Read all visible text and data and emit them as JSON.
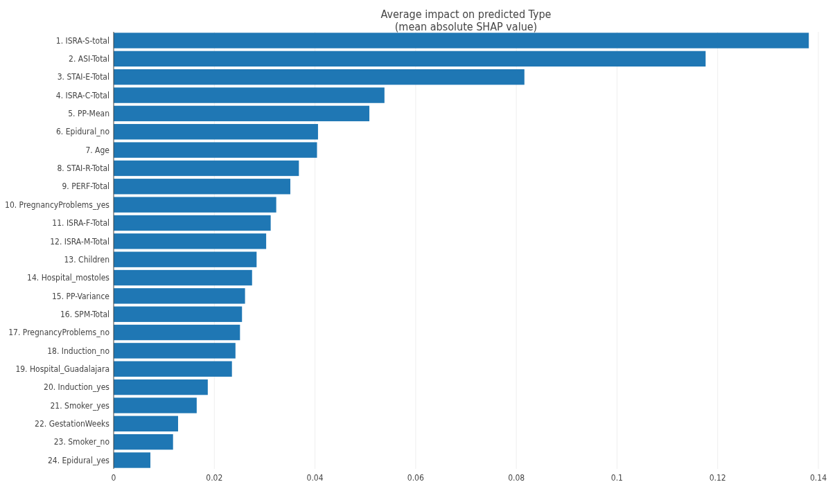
{
  "chart_data": {
    "type": "bar",
    "orientation": "horizontal",
    "title": "Average impact on predicted Type",
    "subtitle": "(mean absolute SHAP value)",
    "categories": [
      "1. ISRA-S-total",
      "2. ASI-Total",
      "3. STAI-E-Total",
      "4. ISRA-C-Total",
      "5. PP-Mean",
      "6. Epidural_no",
      "7. Age",
      "8. STAI-R-Total",
      "9. PERF-Total",
      "10. PregnancyProblems_yes",
      "11. ISRA-F-Total",
      "12. ISRA-M-Total",
      "13. Children",
      "14. Hospital_mostoles",
      "15. PP-Variance",
      "16. SPM-Total",
      "17. PregnancyProblems_no",
      "18. Induction_no",
      "19. Hospital_Guadalajara",
      "20. Induction_yes",
      "21. Smoker_yes",
      "22. GestationWeeks",
      "23. Smoker_no",
      "24. Epidural_yes"
    ],
    "values": [
      0.1381,
      0.1176,
      0.0816,
      0.0538,
      0.0508,
      0.0406,
      0.0404,
      0.0368,
      0.0351,
      0.0323,
      0.0312,
      0.0303,
      0.0284,
      0.0275,
      0.0261,
      0.0255,
      0.0251,
      0.0242,
      0.0235,
      0.0187,
      0.0165,
      0.0128,
      0.0118,
      0.0073
    ],
    "color": "#1f77b4",
    "xlim": [
      0,
      0.14
    ],
    "xticks": [
      0,
      0.02,
      0.04,
      0.06,
      0.08,
      0.1,
      0.12,
      0.14
    ],
    "grid": "x"
  }
}
